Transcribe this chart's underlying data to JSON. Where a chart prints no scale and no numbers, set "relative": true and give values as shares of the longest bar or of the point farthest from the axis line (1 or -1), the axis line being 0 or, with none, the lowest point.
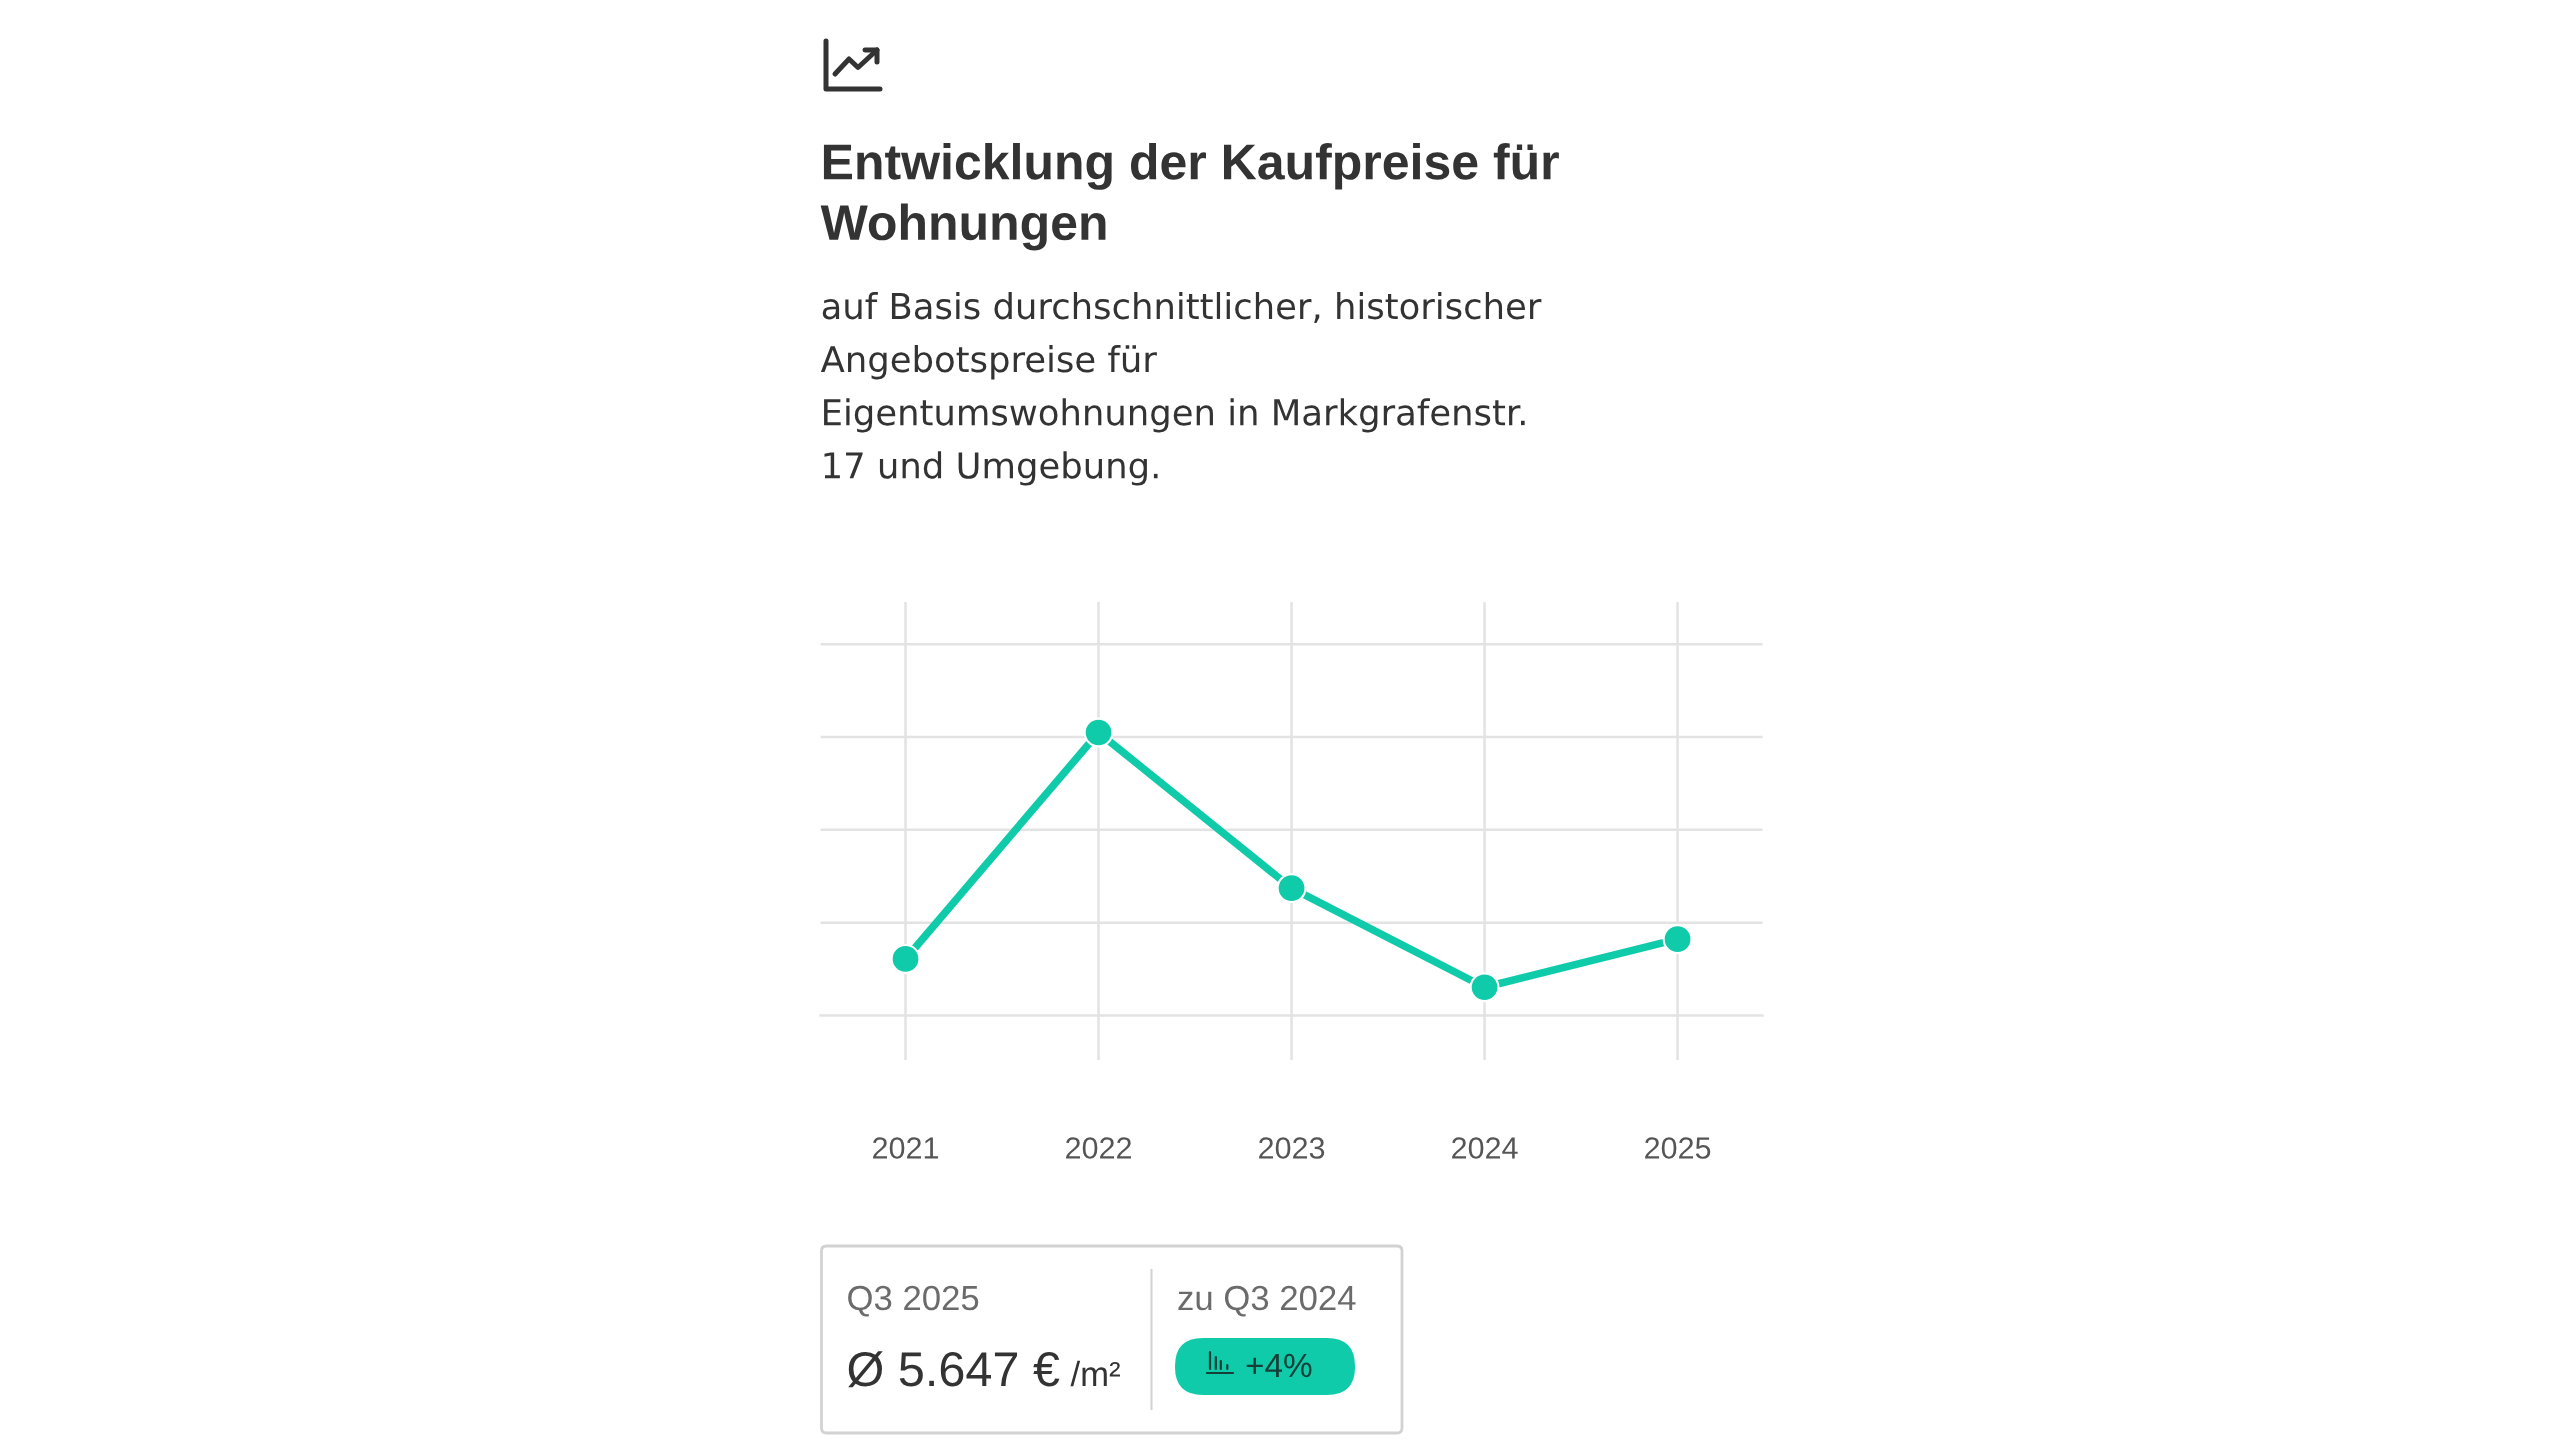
{
  "chart_data": {
    "type": "line",
    "title": "Entwicklung der Kaufpreise für\nWohnungen",
    "subtitle": "auf Basis durchschnittlicher, historischer\nAngebotspreise für\nEigentumswohnungen in Markgrafenstr.\n17 und Umgebung.",
    "categories": [
      "2021",
      "2022",
      "2023",
      "2024",
      "2025"
    ],
    "series": [
      {
        "color": "#0fcbaa",
        "values": [
          0.2,
          1,
          0.45,
          0.1,
          0.27
        ]
      }
    ],
    "relative": true,
    "marker": "circle",
    "line_style": "solid",
    "grid": true,
    "annotations": [
      "Q3 2025",
      "Ø 5.647 €",
      "/m²",
      "zu Q3 2024",
      "+4%"
    ]
  }
}
